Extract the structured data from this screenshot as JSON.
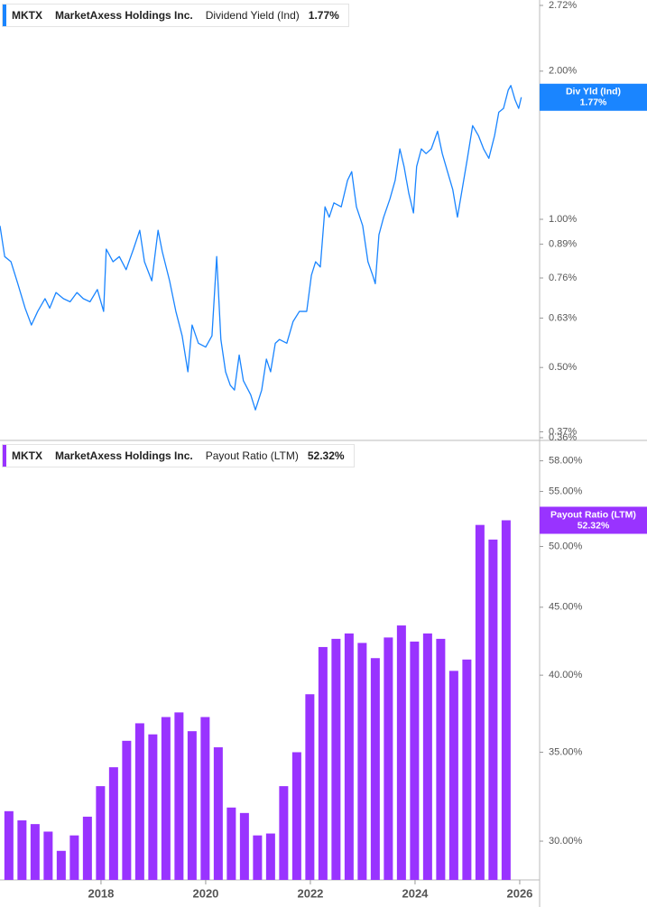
{
  "chart_data": [
    {
      "type": "line",
      "ticker": "MKTX",
      "company": "MarketAxess Holdings Inc.",
      "flag_name": "Div Yld (Ind)",
      "current": {
        "value": 1.77,
        "label": "1.77%"
      },
      "log_scale": true,
      "xlim": [
        2016.07,
        2026.38
      ],
      "ylim": [
        0.36,
        2.72
      ],
      "yticks": [
        {
          "value": 2.72,
          "label": "2.72%"
        },
        {
          "value": 2.0,
          "label": "2.00%"
        },
        {
          "value": 1.0,
          "label": "1.00%"
        },
        {
          "value": 0.89,
          "label": "0.89%"
        },
        {
          "value": 0.76,
          "label": "0.76%"
        },
        {
          "value": 0.63,
          "label": "0.63%"
        },
        {
          "value": 0.5,
          "label": "0.50%"
        },
        {
          "value": 0.37,
          "label": "0.37%"
        },
        {
          "value": 0.36,
          "label": "0.36%"
        }
      ],
      "series": [
        {
          "name": "Dividend Yield (Ind)",
          "color": "#1a85ff",
          "x": [
            2016.07,
            2016.16,
            2016.28,
            2016.41,
            2016.55,
            2016.67,
            2016.79,
            2016.93,
            2017.02,
            2017.14,
            2017.28,
            2017.41,
            2017.54,
            2017.66,
            2017.79,
            2017.93,
            2018.05,
            2018.1,
            2018.23,
            2018.35,
            2018.48,
            2018.62,
            2018.74,
            2018.83,
            2018.97,
            2019.09,
            2019.17,
            2019.31,
            2019.43,
            2019.55,
            2019.66,
            2019.74,
            2019.86,
            2020.0,
            2020.12,
            2020.21,
            2020.29,
            2020.38,
            2020.47,
            2020.55,
            2020.64,
            2020.72,
            2020.86,
            2020.95,
            2021.07,
            2021.16,
            2021.24,
            2021.33,
            2021.41,
            2021.55,
            2021.67,
            2021.79,
            2021.93,
            2022.02,
            2022.1,
            2022.19,
            2022.28,
            2022.36,
            2022.45,
            2022.59,
            2022.71,
            2022.79,
            2022.88,
            2023.0,
            2023.1,
            2023.19,
            2023.24,
            2023.31,
            2023.4,
            2023.52,
            2023.62,
            2023.71,
            2023.79,
            2023.88,
            2023.97,
            2024.03,
            2024.12,
            2024.21,
            2024.31,
            2024.43,
            2024.52,
            2024.62,
            2024.72,
            2024.81,
            2024.9,
            2025.0,
            2025.1,
            2025.21,
            2025.31,
            2025.41,
            2025.52,
            2025.6,
            2025.69,
            2025.78,
            2025.83,
            2025.91,
            2025.98,
            2026.03
          ],
          "values": [
            0.97,
            0.84,
            0.82,
            0.74,
            0.66,
            0.61,
            0.65,
            0.69,
            0.66,
            0.71,
            0.69,
            0.68,
            0.71,
            0.69,
            0.68,
            0.72,
            0.65,
            0.87,
            0.82,
            0.84,
            0.79,
            0.87,
            0.95,
            0.82,
            0.75,
            0.95,
            0.86,
            0.75,
            0.65,
            0.58,
            0.49,
            0.61,
            0.56,
            0.55,
            0.58,
            0.84,
            0.57,
            0.49,
            0.46,
            0.45,
            0.53,
            0.47,
            0.44,
            0.41,
            0.45,
            0.52,
            0.49,
            0.56,
            0.57,
            0.56,
            0.62,
            0.65,
            0.65,
            0.77,
            0.82,
            0.8,
            1.06,
            1.01,
            1.08,
            1.06,
            1.2,
            1.25,
            1.06,
            0.97,
            0.82,
            0.77,
            0.74,
            0.93,
            1.01,
            1.1,
            1.2,
            1.39,
            1.28,
            1.13,
            1.03,
            1.28,
            1.39,
            1.36,
            1.39,
            1.51,
            1.36,
            1.25,
            1.15,
            1.01,
            1.15,
            1.33,
            1.55,
            1.48,
            1.39,
            1.33,
            1.48,
            1.65,
            1.68,
            1.83,
            1.87,
            1.75,
            1.68,
            1.77
          ]
        }
      ]
    },
    {
      "type": "bar",
      "ticker": "MKTX",
      "company": "MarketAxess Holdings Inc.",
      "current": {
        "value": 52.32,
        "label": "52.32%"
      },
      "log_scale": true,
      "xlim": [
        2016.07,
        2026.38
      ],
      "xticks": [
        2018,
        2020,
        2022,
        2024,
        2026
      ],
      "ylim": [
        28.05,
        59.9
      ],
      "yticks": [
        {
          "value": 58,
          "label": "58.00%"
        },
        {
          "value": 55,
          "label": "55.00%"
        },
        {
          "value": 50,
          "label": "50.00%"
        },
        {
          "value": 45,
          "label": "45.00%"
        },
        {
          "value": 40,
          "label": "40.00%"
        },
        {
          "value": 35,
          "label": "35.00%"
        },
        {
          "value": 30,
          "label": "30.00%"
        }
      ],
      "series": [
        {
          "name": "Payout Ratio (LTM)",
          "color": "#9933ff",
          "x": [
            2016.24,
            2016.49,
            2016.74,
            2016.99,
            2017.24,
            2017.49,
            2017.74,
            2017.99,
            2018.24,
            2018.49,
            2018.74,
            2018.99,
            2019.24,
            2019.49,
            2019.74,
            2019.99,
            2020.24,
            2020.49,
            2020.74,
            2020.99,
            2021.24,
            2021.49,
            2021.74,
            2021.99,
            2022.24,
            2022.49,
            2022.74,
            2022.99,
            2023.24,
            2023.49,
            2023.74,
            2023.99,
            2024.24,
            2024.49,
            2024.74,
            2024.99,
            2025.24,
            2025.49,
            2025.74
          ],
          "values": [
            31.6,
            31.1,
            30.9,
            30.5,
            29.5,
            30.3,
            31.3,
            33.0,
            34.1,
            35.7,
            36.8,
            36.1,
            37.2,
            37.5,
            36.3,
            37.2,
            35.3,
            31.8,
            31.5,
            30.3,
            30.4,
            33.0,
            35.0,
            38.7,
            42.0,
            42.6,
            43.0,
            42.3,
            41.2,
            42.7,
            43.6,
            42.4,
            43.0,
            42.6,
            40.3,
            41.1,
            51.9,
            50.6,
            52.32
          ]
        }
      ]
    }
  ]
}
